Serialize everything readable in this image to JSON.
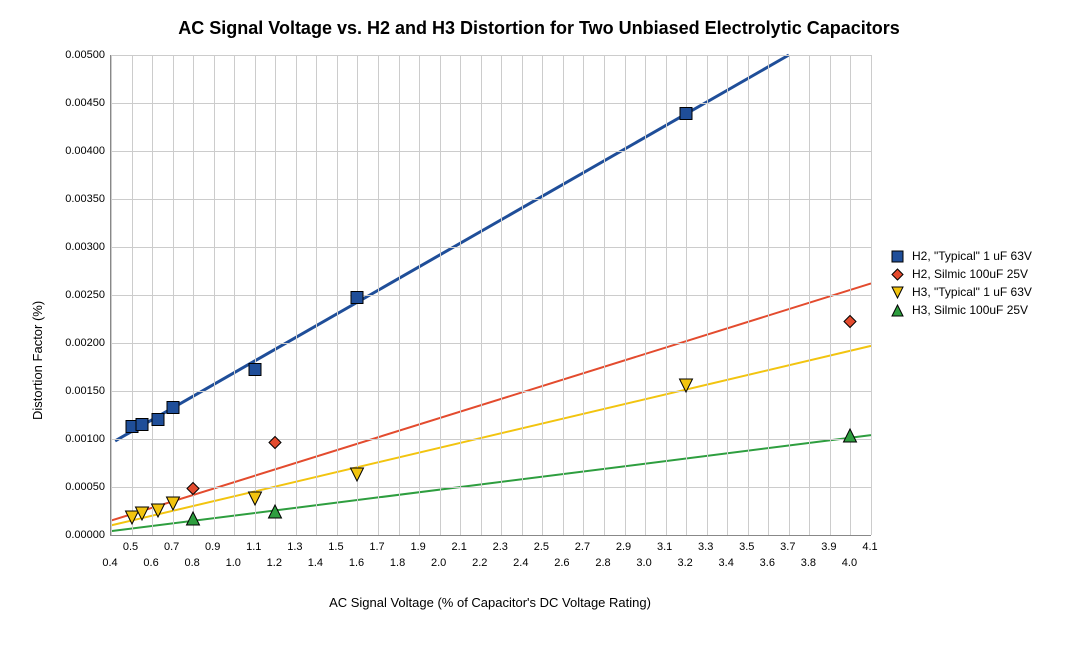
{
  "chart": {
    "type": "scatter-with-trendlines",
    "title": "AC Signal Voltage vs. H2 and H3 Distortion for Two Unbiased Electrolytic Capacitors",
    "title_fontsize": 18,
    "title_fontweight": "bold",
    "background_color": "#ffffff",
    "grid_color": "#cccccc",
    "axis_color": "#888888",
    "tick_label_fontsize": 11,
    "axis_title_fontsize": 13,
    "x_axis": {
      "title": "AC Signal Voltage (% of Capacitor's DC Voltage Rating)",
      "min": 0.4,
      "max": 4.1,
      "ticks_major": [
        0.4,
        0.6,
        0.8,
        1.0,
        1.2,
        1.4,
        1.6,
        1.8,
        2.0,
        2.2,
        2.4,
        2.6,
        2.8,
        3.0,
        3.2,
        3.4,
        3.6,
        3.8,
        4.0
      ],
      "ticks_minor": [
        0.5,
        0.7,
        0.9,
        1.1,
        1.3,
        1.5,
        1.7,
        1.9,
        2.1,
        2.3,
        2.5,
        2.7,
        2.9,
        3.1,
        3.3,
        3.5,
        3.7,
        3.9,
        4.1
      ],
      "tick_labels_major": [
        "0.4",
        "0.6",
        "0.8",
        "1.0",
        "1.2",
        "1.4",
        "1.6",
        "1.8",
        "2.0",
        "2.2",
        "2.4",
        "2.6",
        "2.8",
        "3.0",
        "3.2",
        "3.4",
        "3.6",
        "3.8",
        "4.0"
      ],
      "tick_labels_minor": [
        "0.5",
        "0.7",
        "0.9",
        "1.1",
        "1.3",
        "1.5",
        "1.7",
        "1.9",
        "2.1",
        "2.3",
        "2.5",
        "2.7",
        "2.9",
        "3.1",
        "3.3",
        "3.5",
        "3.7",
        "3.9",
        "4.1"
      ]
    },
    "y_axis": {
      "title": "Distortion Factor (%)",
      "min": 0.0,
      "max": 0.005,
      "ticks": [
        0.0,
        0.0005,
        0.001,
        0.0015,
        0.002,
        0.0025,
        0.003,
        0.0035,
        0.004,
        0.0045,
        0.005
      ],
      "tick_labels": [
        "0.00000",
        "0.00050",
        "0.00100",
        "0.00150",
        "0.00200",
        "0.00250",
        "0.00300",
        "0.00350",
        "0.00400",
        "0.00450",
        "0.00500"
      ]
    },
    "series": [
      {
        "id": "h2_typical",
        "label": "H2, \"Typical\" 1 uF 63V",
        "color": "#1f4e99",
        "marker": "square-filled",
        "marker_size": 12,
        "points": [
          {
            "x": 0.5,
            "y": 0.0011
          },
          {
            "x": 0.55,
            "y": 0.00113
          },
          {
            "x": 0.63,
            "y": 0.00118
          },
          {
            "x": 0.7,
            "y": 0.0013
          },
          {
            "x": 1.1,
            "y": 0.0017
          },
          {
            "x": 1.6,
            "y": 0.00245
          },
          {
            "x": 3.2,
            "y": 0.00436
          }
        ],
        "trend": {
          "x1": 0.42,
          "y1": 0.00098,
          "x2": 3.7,
          "y2": 0.005,
          "width": 3
        }
      },
      {
        "id": "h2_silmic",
        "label": "H2, Silmic 100uF 25V",
        "color": "#e34b2e",
        "marker": "diamond-filled",
        "marker_size": 12,
        "points": [
          {
            "x": 0.8,
            "y": 0.00046
          },
          {
            "x": 1.2,
            "y": 0.00094
          },
          {
            "x": 4.0,
            "y": 0.0022
          }
        ],
        "trend": {
          "x1": 0.4,
          "y1": 0.00015,
          "x2": 4.1,
          "y2": 0.00262,
          "width": 2
        }
      },
      {
        "id": "h3_typical",
        "label": "H3, \"Typical\" 1 uF 63V",
        "color": "#f2c40f",
        "marker": "triangle-down-outline",
        "marker_size": 13,
        "points": [
          {
            "x": 0.5,
            "y": 0.00016
          },
          {
            "x": 0.55,
            "y": 0.0002
          },
          {
            "x": 0.63,
            "y": 0.00023
          },
          {
            "x": 0.7,
            "y": 0.0003
          },
          {
            "x": 1.1,
            "y": 0.00035
          },
          {
            "x": 1.6,
            "y": 0.0006
          },
          {
            "x": 3.2,
            "y": 0.00153
          }
        ],
        "trend": {
          "x1": 0.4,
          "y1": 0.0001,
          "x2": 4.1,
          "y2": 0.00197,
          "width": 2
        }
      },
      {
        "id": "h3_silmic",
        "label": "H3, Silmic 100uF 25V",
        "color": "#2e9e3f",
        "marker": "triangle-up-filled",
        "marker_size": 13,
        "points": [
          {
            "x": 0.8,
            "y": 0.00015
          },
          {
            "x": 1.2,
            "y": 0.00022
          },
          {
            "x": 4.0,
            "y": 0.00101
          }
        ],
        "trend": {
          "x1": 0.4,
          "y1": 4e-05,
          "x2": 4.1,
          "y2": 0.00104,
          "width": 2
        }
      }
    ],
    "legend": {
      "position": "right",
      "fontsize": 12
    }
  }
}
